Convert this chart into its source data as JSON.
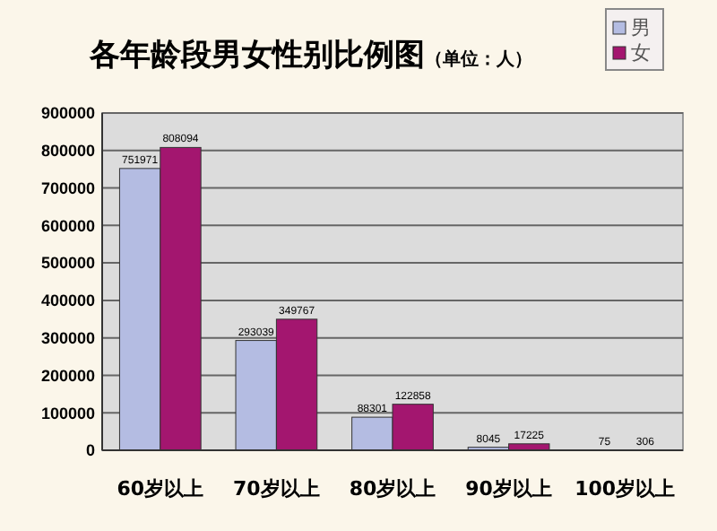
{
  "chart_data": {
    "type": "bar",
    "title": "各年龄段男女性别比例图",
    "subtitle": "（单位：人）",
    "categories": [
      "60岁以上",
      "70岁以上",
      "80岁以上",
      "90岁以上",
      "100岁以上"
    ],
    "series": [
      {
        "name": "男",
        "color": "#b4bce2",
        "values": [
          751971,
          293039,
          88301,
          8045,
          75
        ]
      },
      {
        "name": "女",
        "color": "#a3166f",
        "values": [
          808094,
          349767,
          122858,
          17225,
          306
        ]
      }
    ],
    "ylim": [
      0,
      900000
    ],
    "yticks": [
      0,
      100000,
      200000,
      300000,
      400000,
      500000,
      600000,
      700000,
      800000,
      900000
    ],
    "grid": "y",
    "legend": "top right",
    "data_labels": true
  }
}
